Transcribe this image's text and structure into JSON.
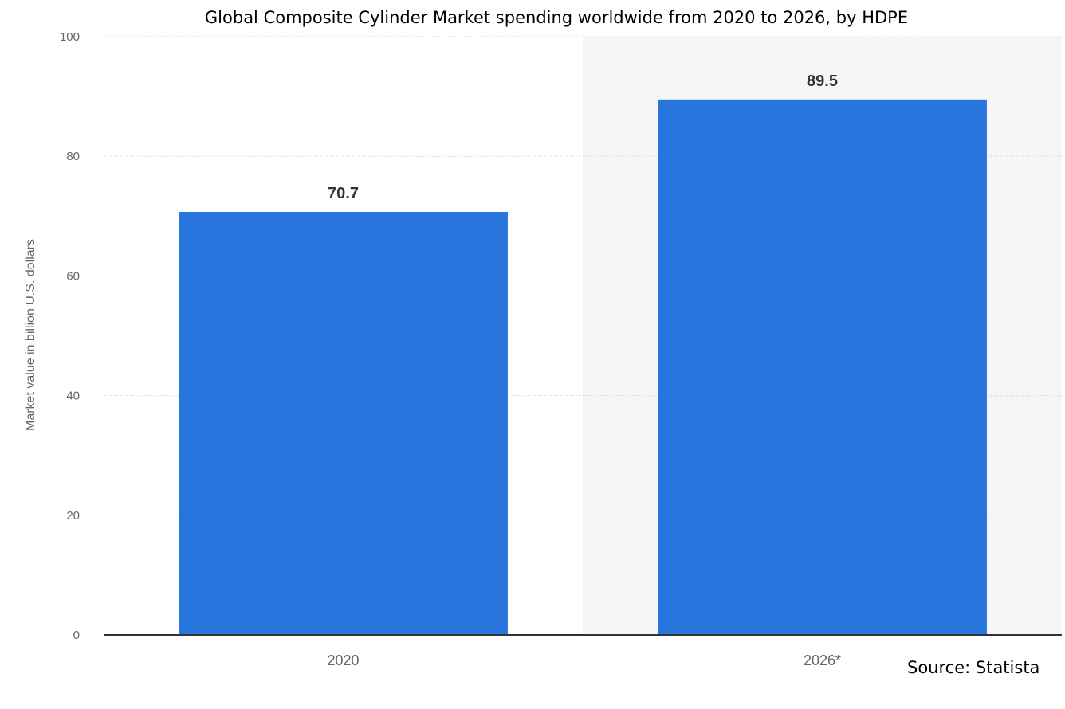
{
  "title": "Global Composite Cylinder Market spending worldwide from 2020 to 2026, by HDPE",
  "source": "Source: Statista",
  "colors": {
    "bar": "#2876dd",
    "shade": "#f6f6f6",
    "grid": "#d9d9d9",
    "axis": "#333333",
    "tick_text": "#666666"
  },
  "chart_data": {
    "type": "bar",
    "title": "Global Composite Cylinder Market spending worldwide from 2020 to 2026, by HDPE",
    "xlabel": "",
    "ylabel": "Market value in billion U.S. dollars",
    "categories": [
      "2020",
      "2026*"
    ],
    "values": [
      70.7,
      89.5
    ],
    "value_labels": [
      "70.7",
      "89.5"
    ],
    "ylim": [
      0,
      100
    ],
    "yticks": [
      "0",
      "20",
      "40",
      "60",
      "80",
      "100"
    ],
    "grid": true,
    "shaded_category": "2026*"
  }
}
